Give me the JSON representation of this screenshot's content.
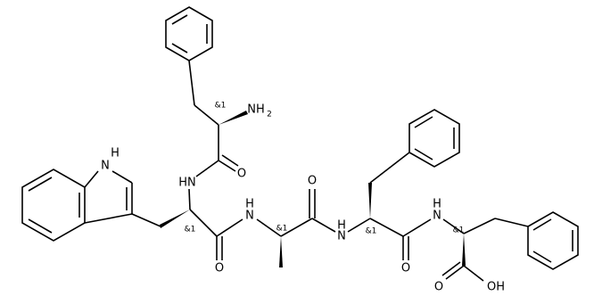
{
  "molecule": {
    "atoms": [
      {
        "label": "H"
      },
      {
        "label": "N"
      },
      {
        "label": "NH"
      },
      {
        "label": "2"
      },
      {
        "label": "&1"
      },
      {
        "label": "HN"
      },
      {
        "label": "O"
      },
      {
        "label": "&1"
      },
      {
        "label": "H"
      },
      {
        "label": "N"
      },
      {
        "label": "O"
      },
      {
        "label": "&1"
      },
      {
        "label": "O"
      },
      {
        "label": "H"
      },
      {
        "label": "N"
      },
      {
        "label": "&1"
      },
      {
        "label": "O"
      },
      {
        "label": "H"
      },
      {
        "label": "N"
      },
      {
        "label": "&1"
      },
      {
        "label": "O"
      },
      {
        "label": "OH"
      }
    ]
  }
}
